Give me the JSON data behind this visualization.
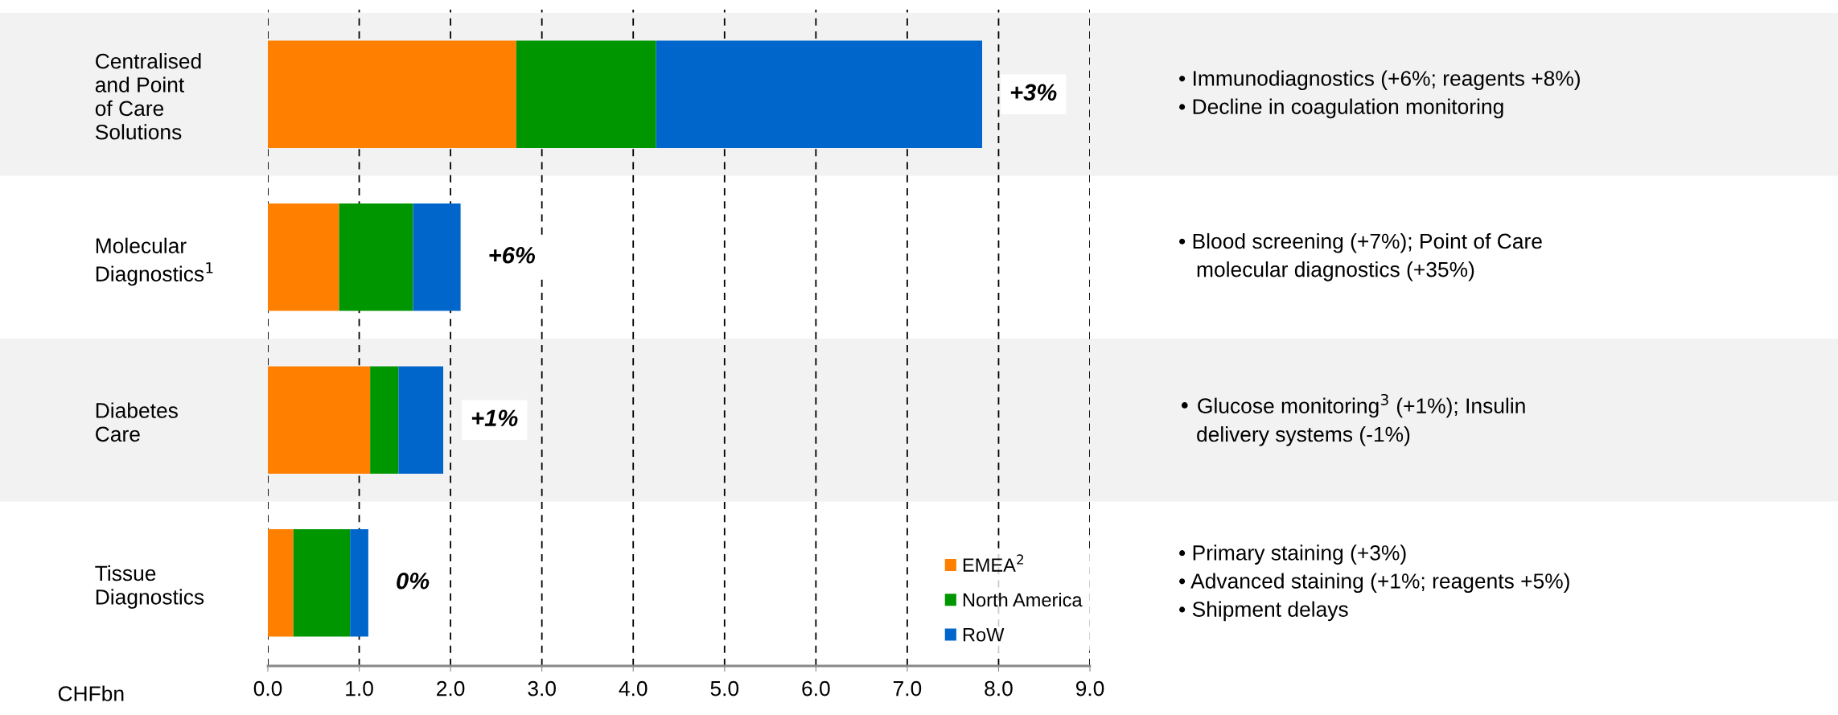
{
  "chart_data": {
    "type": "bar",
    "orientation": "horizontal",
    "stacked": true,
    "categories": [
      "Centralised\nand Point\nof Care\nSolutions",
      "Molecular\nDiagnostics$^{1}$",
      "Diabetes\nCare",
      "Tissue\nDiagnostics"
    ],
    "series": [
      {
        "name": "EMEA$^{2}$",
        "color": "#ff8000",
        "values": [
          2.72,
          0.78,
          1.12,
          0.28
        ]
      },
      {
        "name": "North America",
        "color": "#009600",
        "values": [
          1.53,
          0.81,
          0.31,
          0.62
        ]
      },
      {
        "name": "RoW",
        "color": "#0066cc",
        "values": [
          3.57,
          0.52,
          0.49,
          0.2
        ]
      }
    ],
    "xlabel": "CHFbn",
    "xlim": [
      0,
      9
    ],
    "xticks": [
      {
        "value": 0,
        "label": "0.0"
      },
      {
        "value": 1,
        "label": "1.0"
      },
      {
        "value": 2,
        "label": "2.0"
      },
      {
        "value": 3,
        "label": "3.0"
      },
      {
        "value": 4,
        "label": "4.0"
      },
      {
        "value": 5,
        "label": "5.0"
      },
      {
        "value": 6,
        "label": "6.0"
      },
      {
        "value": 7,
        "label": "7.0"
      },
      {
        "value": 8,
        "label": "8.0"
      },
      {
        "value": 9,
        "label": "9.0"
      }
    ],
    "grid": "x",
    "legend": "bottom right",
    "bands": [
      {
        "axis": "y",
        "from": "Centralised\nand Point\nof Care\nSolutions",
        "to": "Centralised\nand Point\nof Care\nSolutions",
        "color": "#f2f2f2"
      },
      {
        "axis": "y",
        "from": "Diabetes\nCare",
        "to": "Diabetes\nCare",
        "color": "#f2f2f2"
      }
    ],
    "annotations": [
      {
        "text": "+3%",
        "x": 7.82,
        "y": "Centralised\nand Point\nof Care\nSolutions"
      },
      {
        "text": "+6%",
        "x": 2.11,
        "y": "Molecular\nDiagnostics$^{1}$"
      },
      {
        "text": "+1%",
        "x": 1.92,
        "y": "Diabetes\nCare"
      },
      {
        "text": "0%",
        "x": 1.1,
        "y": "Tissue\nDiagnostics"
      },
      "• Immunodiagnostics (+6%; reagents +8%)\n• Decline in coagulation monitoring",
      "• Blood screening (+7%); Point of Care\n   molecular diagnostics (+35%)",
      "• Glucose monitoring$^{3}$ (+1%); Insulin\n   delivery systems (-1%)",
      "• Primary staining (+3%)\n• Advanced staining (+1%; reagents +5%)\n• Shipment delays"
    ]
  }
}
